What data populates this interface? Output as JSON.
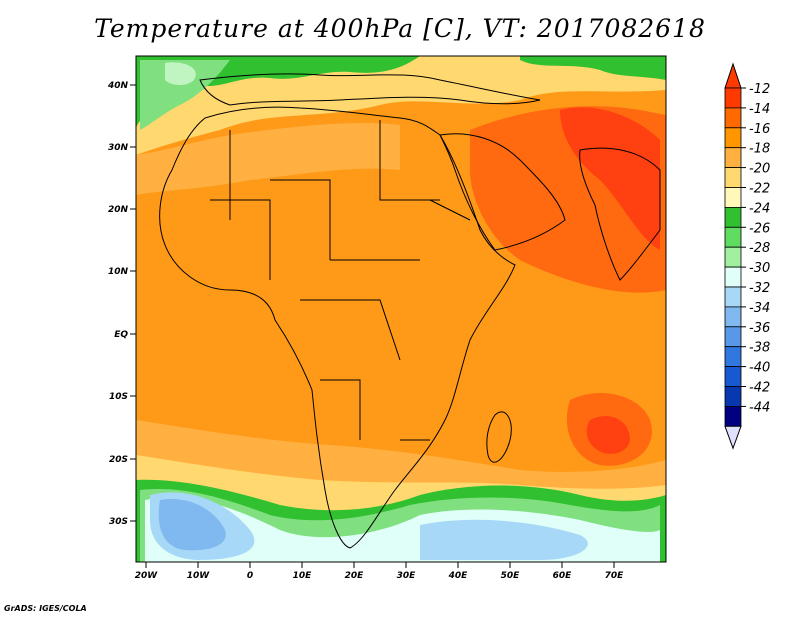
{
  "title": "Temperature at 400hPa [C], VT: 2017082618",
  "credit": "GrADS: IGES/COLA",
  "lat_labels": [
    "40N",
    "30N",
    "20N",
    "10N",
    "EQ",
    "10S",
    "20S",
    "30S"
  ],
  "lon_labels": [
    "20W",
    "10W",
    "0",
    "10E",
    "20E",
    "30E",
    "40E",
    "50E",
    "60E",
    "70E"
  ],
  "colorbar": {
    "labels": [
      "-12",
      "-14",
      "-16",
      "-18",
      "-20",
      "-22",
      "-24",
      "-26",
      "-28",
      "-30",
      "-32",
      "-34",
      "-36",
      "-38",
      "-40",
      "-42",
      "-44"
    ],
    "colors": [
      "#ff3a00",
      "#ff6a00",
      "#ff9600",
      "#ffb040",
      "#ffd870",
      "#fff8b8",
      "#30c030",
      "#60dc60",
      "#a0f0a0",
      "#e0fff8",
      "#a8d8f8",
      "#80b8f0",
      "#5898e8",
      "#3078e0",
      "#1858d0",
      "#0838b0",
      "#000080"
    ],
    "top_color": "#ff3a00",
    "bottom_color": "#e0e0ff"
  },
  "colors": {
    "base": "#ff9a18",
    "warm": "#ff6a10",
    "hot": "#ff4010",
    "light_orange": "#ffc050",
    "pale": "#fff0a0",
    "green": "#30c030",
    "light_green": "#80e080",
    "pale_green": "#c0f4c0",
    "cyan": "#e0fff8",
    "light_blue": "#a8d8f8",
    "blue": "#80b8f0"
  }
}
